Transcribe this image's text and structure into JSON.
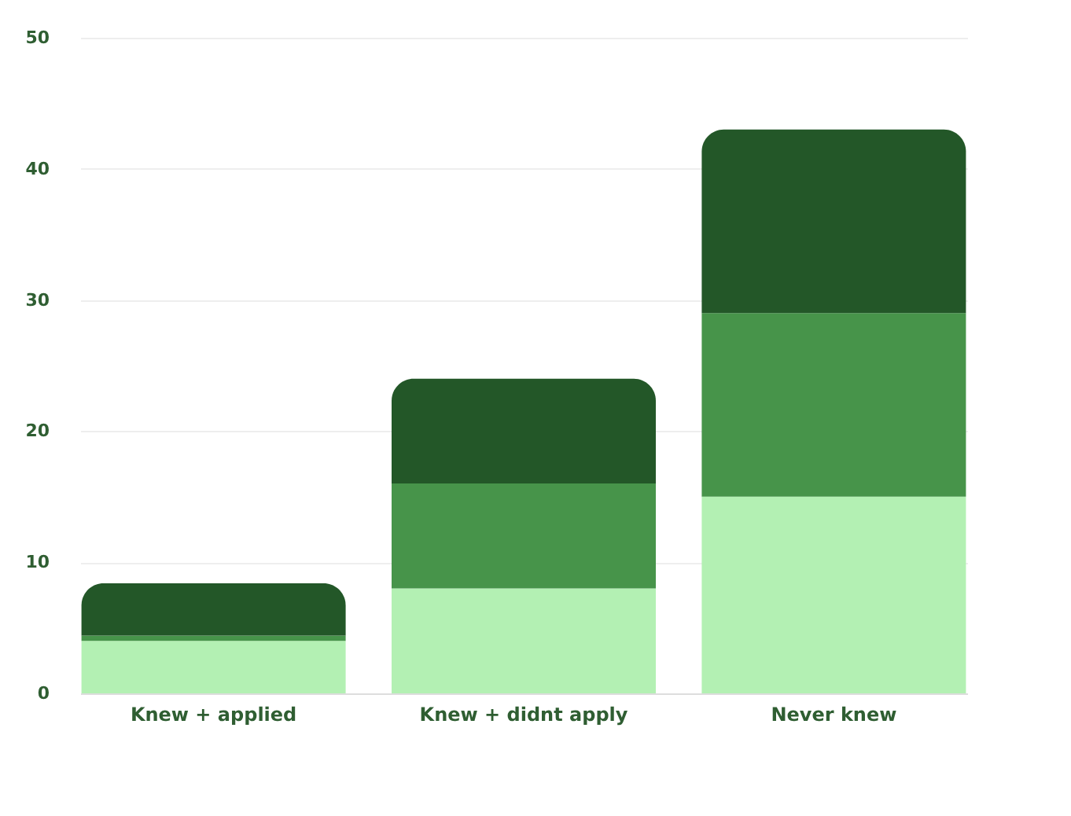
{
  "chart_data": {
    "type": "bar",
    "stacked": true,
    "categories": [
      "Knew + applied",
      "Knew + didnt apply",
      "Never knew"
    ],
    "series": [
      {
        "color": "#b3f0b3",
        "values": [
          4,
          8,
          15
        ]
      },
      {
        "color": "#47944a",
        "values": [
          0.4,
          8,
          14
        ]
      },
      {
        "color": "#235728",
        "values": [
          4,
          8,
          14
        ]
      }
    ],
    "ylim": [
      0,
      50
    ],
    "yticks": [
      0,
      10,
      20,
      30,
      40,
      50
    ],
    "grid": "y"
  }
}
